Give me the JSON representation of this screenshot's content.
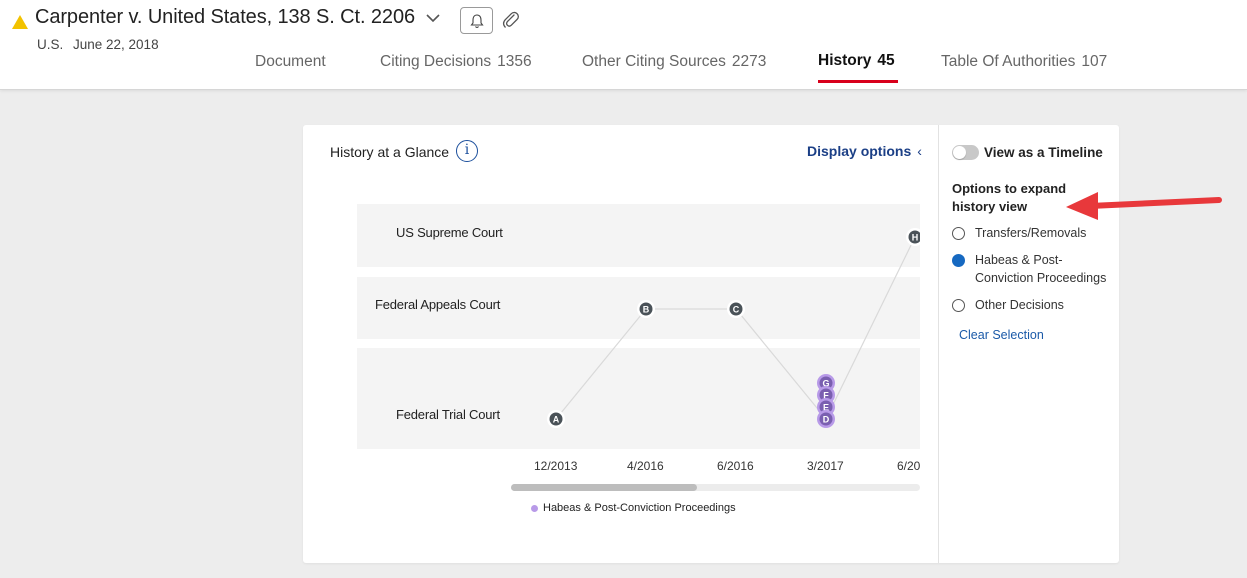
{
  "header": {
    "case_title": "Carpenter v. United States, 138 S. Ct. 2206",
    "jurisdiction": "U.S.",
    "date": "June 22, 2018",
    "icons": [
      "warning-triangle-icon",
      "chevron-down-icon",
      "bell-icon",
      "paperclip-icon"
    ]
  },
  "tabs": [
    {
      "label": "Document",
      "count": ""
    },
    {
      "label": "Citing Decisions",
      "count": "1356"
    },
    {
      "label": "Other Citing Sources",
      "count": "2273"
    },
    {
      "label": "History",
      "count": "45",
      "active": true
    },
    {
      "label": "Table Of Authorities",
      "count": "107"
    }
  ],
  "glance": {
    "title": "History at a Glance",
    "info_icon": "i",
    "display_options": "Display options",
    "display_chevron": "‹"
  },
  "chart_data": {
    "type": "scatter",
    "lanes": [
      "US Supreme Court",
      "Federal Appeals Court",
      "Federal Trial Court"
    ],
    "x_ticks": [
      "12/2013",
      "4/2016",
      "6/2016",
      "3/2017",
      "6/20"
    ],
    "nodes": [
      {
        "label": "A",
        "lane": "Federal Trial Court",
        "date": "12/2013",
        "highlight": false
      },
      {
        "label": "B",
        "lane": "Federal Appeals Court",
        "date": "4/2016",
        "highlight": false
      },
      {
        "label": "C",
        "lane": "Federal Appeals Court",
        "date": "6/2016",
        "highlight": false
      },
      {
        "label": "D",
        "lane": "Federal Trial Court",
        "date": "3/2017",
        "highlight": true
      },
      {
        "label": "E",
        "lane": "Federal Trial Court",
        "date": "3/2017",
        "highlight": true
      },
      {
        "label": "F",
        "lane": "Federal Trial Court",
        "date": "3/2017",
        "highlight": true
      },
      {
        "label": "G",
        "lane": "Federal Trial Court",
        "date": "3/2017",
        "highlight": true
      },
      {
        "label": "H",
        "lane": "US Supreme Court",
        "date": "6/20",
        "highlight": false
      }
    ],
    "legend": "Habeas & Post-Conviction Proceedings",
    "colors": {
      "node": "#4a5258",
      "highlight": "#b89ae8",
      "line": "#d9d9d9"
    }
  },
  "side_panel": {
    "toggle_label": "View as a Timeline",
    "toggle_on": false,
    "heading": "Options to expand history view",
    "options": [
      {
        "label": "Transfers/Removals",
        "checked": false
      },
      {
        "label": "Habeas & Post-Conviction Proceedings",
        "checked": true
      },
      {
        "label": "Other Decisions",
        "checked": false
      }
    ],
    "clear_label": "Clear Selection"
  },
  "colors": {
    "accent_red": "#d8001b",
    "link_blue": "#1b3f86",
    "radio_blue": "#1669c1",
    "warning_yellow": "#f2c200",
    "arrow_red": "#e8383b"
  }
}
